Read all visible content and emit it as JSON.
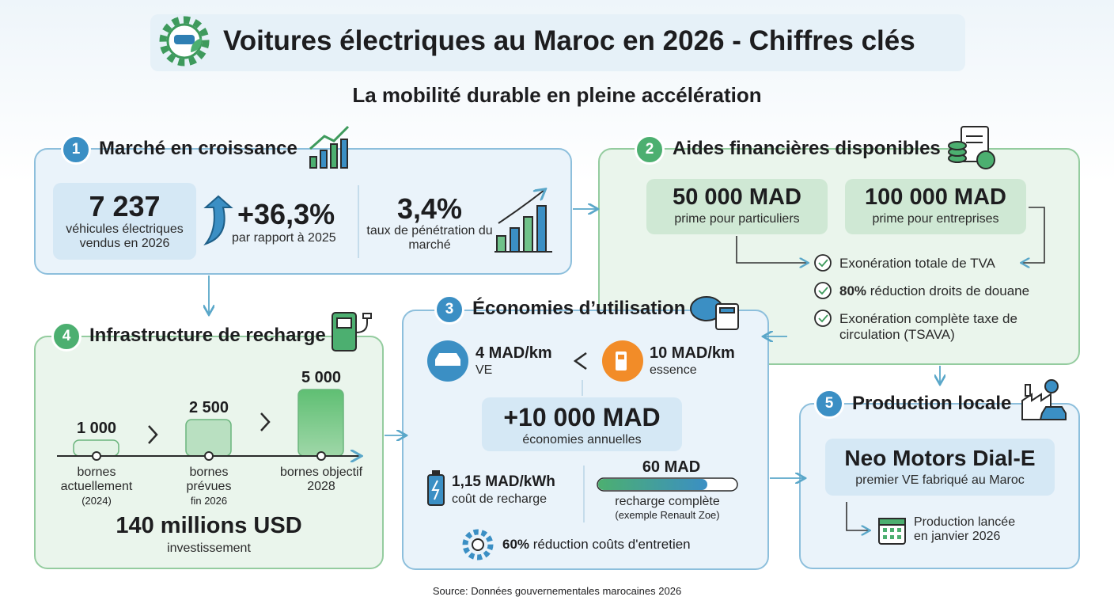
{
  "header": {
    "title": "Voitures électriques au Maroc en 2026 - Chiffres clés",
    "subtitle": "La mobilité durable en pleine accélération"
  },
  "market": {
    "number": "1",
    "title": "Marché en croissance",
    "sales": {
      "value": "7 237",
      "label": "véhicules électriques vendus en 2026"
    },
    "growth": {
      "value": "+36,3%",
      "label": "par rapport à 2025"
    },
    "penetration": {
      "value": "3,4%",
      "label": "taux de pénétration du marché"
    }
  },
  "aid": {
    "number": "2",
    "title": "Aides financières disponibles",
    "primes": [
      {
        "value": "50 000 MAD",
        "label": "prime pour particuliers"
      },
      {
        "value": "100 000 MAD",
        "label": "prime pour entreprises"
      }
    ],
    "benefits": [
      {
        "text": "Exonération totale de TVA"
      },
      {
        "bold": "80%",
        "text": "réduction droits de douane"
      },
      {
        "text": "Exonération complète taxe de circulation (TSAVA)"
      }
    ]
  },
  "savings": {
    "number": "3",
    "title": "Économies d’utilisation",
    "ev": {
      "value": "4 MAD/km",
      "label": "VE"
    },
    "petrol": {
      "value": "10 MAD/km",
      "label": "essence"
    },
    "annual": {
      "value": "+10 000 MAD",
      "label": "économies annuelles"
    },
    "charge_cost": {
      "value": "1,15 MAD/kWh",
      "label": "coût de recharge"
    },
    "full_charge": {
      "value": "60 MAD",
      "label": "recharge complète",
      "note": "(exemple Renault Zoe)"
    },
    "maintenance": {
      "value": "60%",
      "label": "réduction coûts d'entretien"
    }
  },
  "infrastructure": {
    "number": "4",
    "title": "Infrastructure de recharge",
    "stages": [
      {
        "value": "1 000",
        "label": "bornes actuellement",
        "note": "(2024)"
      },
      {
        "value": "2 500",
        "label": "bornes prévues",
        "note": "fin 2026"
      },
      {
        "value": "5 000",
        "label": "bornes objectif 2028"
      }
    ],
    "investment": {
      "value": "140 millions USD",
      "label": "investissement"
    }
  },
  "production": {
    "number": "5",
    "title": "Production locale",
    "model": {
      "name": "Neo Motors Dial-E",
      "label": "premier VE fabriqué au Maroc"
    },
    "launch": "Production lancée en janvier 2026"
  },
  "footer": {
    "source": "Source: Données gouvernementales marocaines 2026"
  }
}
